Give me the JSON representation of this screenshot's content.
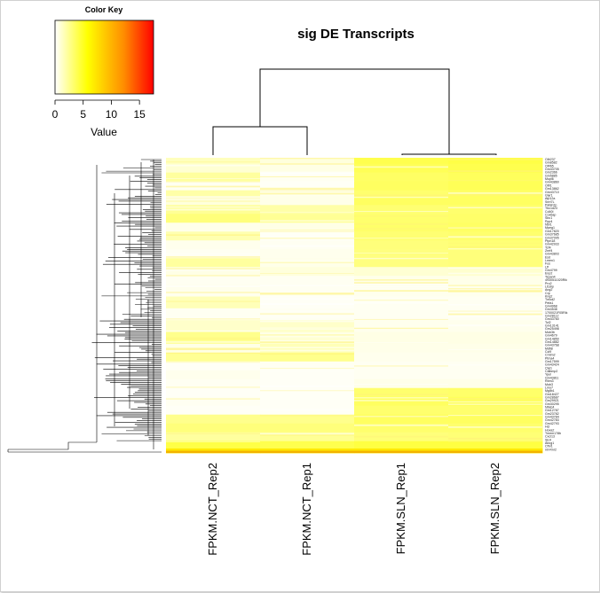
{
  "chart_data": {
    "type": "heatmap",
    "title": "sig DE Transcripts",
    "columns": [
      "FPKM.NCT_Rep2",
      "FPKM.NCT_Rep1",
      "FPKM.SLN_Rep1",
      "FPKM.SLN_Rep2"
    ],
    "color_key": {
      "title": "Color Key",
      "label": "Value",
      "ticks": [
        0,
        5,
        10,
        15
      ],
      "range": [
        0,
        17.5
      ],
      "colors": [
        "#ffffff",
        "#ffff00",
        "#ff8c00",
        "#ff0000"
      ]
    },
    "row_labels": [
      "Olfr237",
      "Gm8582",
      "Olfr65",
      "Gm43705",
      "Gm2366",
      "Gm5885",
      "Mupl6",
      "Gm43860",
      "Olfr1",
      "Gm13862",
      "Gm43710",
      "Glyr1",
      "Atp12a",
      "Snrt7L",
      "Pafah2p",
      "Tbc1d23",
      "Cd40l",
      "Cox6ap",
      "Sbc1",
      "Ppp4",
      "Nbr1",
      "Mpeg1",
      "Gm17820",
      "Gm37685",
      "Gm37095",
      "Ptpn18",
      "Gm42933",
      "Tcf4",
      "Znrf4",
      "Gm43803",
      "Esd",
      "Lmen1",
      "Fos",
      "Ltf",
      "Gm4799",
      "Enp2",
      "Tspan4",
      "4930511020Rik",
      "Pro2",
      "Ll18rp",
      "Ang2",
      "Crp",
      "Kng2",
      "Tmod2",
      "Pefa1",
      "Gm4968",
      "Gm3548",
      "1700021F05Rik",
      "Gm28112",
      "Gm43760",
      "Tcf2",
      "Gm13141",
      "Gm25498",
      "Mob3b",
      "Gm4679",
      "Gm14850",
      "Gm14882",
      "Gm43768",
      "Mdfi8",
      "Ccl9",
      "Cmtm2",
      "Ptma4",
      "Gm17599",
      "Gm43424",
      "Clyl1",
      "Calbmp2",
      "Ypel",
      "Gm43811",
      "Rbm3",
      "Mob3",
      "Lmo7",
      "Mgllb1",
      "Gm18427",
      "Gm28687",
      "Gm29921",
      "Gm30295",
      "Nfatc4",
      "Gm12787",
      "Gm23782",
      "Gm43784",
      "Gm42783",
      "Gm42793",
      "Hcl",
      "Hoxa2",
      "Tmem178b",
      "Cxcl13",
      "Slc4",
      "Abcg1",
      "Cfhr1",
      "mt-Rnr2"
    ],
    "rows": [
      {
        "f": 0.02,
        "v": [
          1.5,
          0.8,
          4.0,
          4.2
        ]
      },
      {
        "f": 0.05,
        "v": [
          1.0,
          0.6,
          3.8,
          4.0
        ]
      },
      {
        "f": 0.08,
        "v": [
          2.2,
          0.3,
          3.5,
          3.7
        ]
      },
      {
        "f": 0.11,
        "v": [
          0.3,
          0.2,
          3.6,
          3.8
        ]
      },
      {
        "f": 0.13,
        "v": [
          2.0,
          0.4,
          3.3,
          3.5
        ]
      },
      {
        "f": 0.16,
        "v": [
          0.8,
          0.5,
          3.6,
          3.6
        ]
      },
      {
        "f": 0.19,
        "v": [
          2.4,
          2.0,
          3.2,
          3.3
        ]
      },
      {
        "f": 0.22,
        "v": [
          3.0,
          2.4,
          3.3,
          3.4
        ]
      },
      {
        "f": 0.25,
        "v": [
          0.5,
          0.6,
          3.4,
          3.5
        ]
      },
      {
        "f": 0.28,
        "v": [
          1.8,
          0.2,
          3.2,
          3.3
        ]
      },
      {
        "f": 0.31,
        "v": [
          0.4,
          0.3,
          3.0,
          3.1
        ]
      },
      {
        "f": 0.34,
        "v": [
          0.3,
          0.4,
          2.9,
          3.0
        ]
      },
      {
        "f": 0.37,
        "v": [
          2.2,
          0.5,
          2.9,
          3.0
        ]
      },
      {
        "f": 0.4,
        "v": [
          0.6,
          0.8,
          1.0,
          1.1
        ]
      },
      {
        "f": 0.43,
        "v": [
          0.3,
          0.3,
          0.5,
          0.5
        ]
      },
      {
        "f": 0.47,
        "v": [
          0.4,
          0.3,
          0.4,
          0.4
        ]
      },
      {
        "f": 0.51,
        "v": [
          1.6,
          0.2,
          0.3,
          0.3
        ]
      },
      {
        "f": 0.55,
        "v": [
          0.3,
          0.3,
          0.3,
          0.3
        ]
      },
      {
        "f": 0.59,
        "v": [
          1.2,
          1.2,
          0.4,
          0.4
        ]
      },
      {
        "f": 0.63,
        "v": [
          2.6,
          1.0,
          0.6,
          0.6
        ]
      },
      {
        "f": 0.66,
        "v": [
          0.6,
          1.6,
          0.5,
          0.5
        ]
      },
      {
        "f": 0.69,
        "v": [
          2.4,
          2.6,
          0.4,
          0.4
        ]
      },
      {
        "f": 0.72,
        "v": [
          0.2,
          0.3,
          0.3,
          0.3
        ]
      },
      {
        "f": 0.75,
        "v": [
          0.4,
          0.2,
          0.3,
          0.3
        ]
      },
      {
        "f": 0.78,
        "v": [
          0.3,
          0.2,
          0.5,
          0.5
        ]
      },
      {
        "f": 0.81,
        "v": [
          0.2,
          0.2,
          3.3,
          3.4
        ]
      },
      {
        "f": 0.84,
        "v": [
          0.3,
          0.2,
          3.6,
          3.7
        ]
      },
      {
        "f": 0.87,
        "v": [
          0.2,
          0.2,
          3.3,
          3.3
        ]
      },
      {
        "f": 0.9,
        "v": [
          2.6,
          2.6,
          3.6,
          3.6
        ]
      },
      {
        "f": 0.93,
        "v": [
          3.0,
          3.0,
          3.3,
          3.3
        ]
      },
      {
        "f": 0.96,
        "v": [
          2.2,
          2.4,
          3.0,
          3.1
        ]
      },
      {
        "f": 0.985,
        "v": [
          4.2,
          4.0,
          4.3,
          4.3
        ]
      },
      {
        "f": 1.0,
        "v": [
          7.0,
          7.0,
          7.0,
          7.0
        ]
      }
    ]
  }
}
